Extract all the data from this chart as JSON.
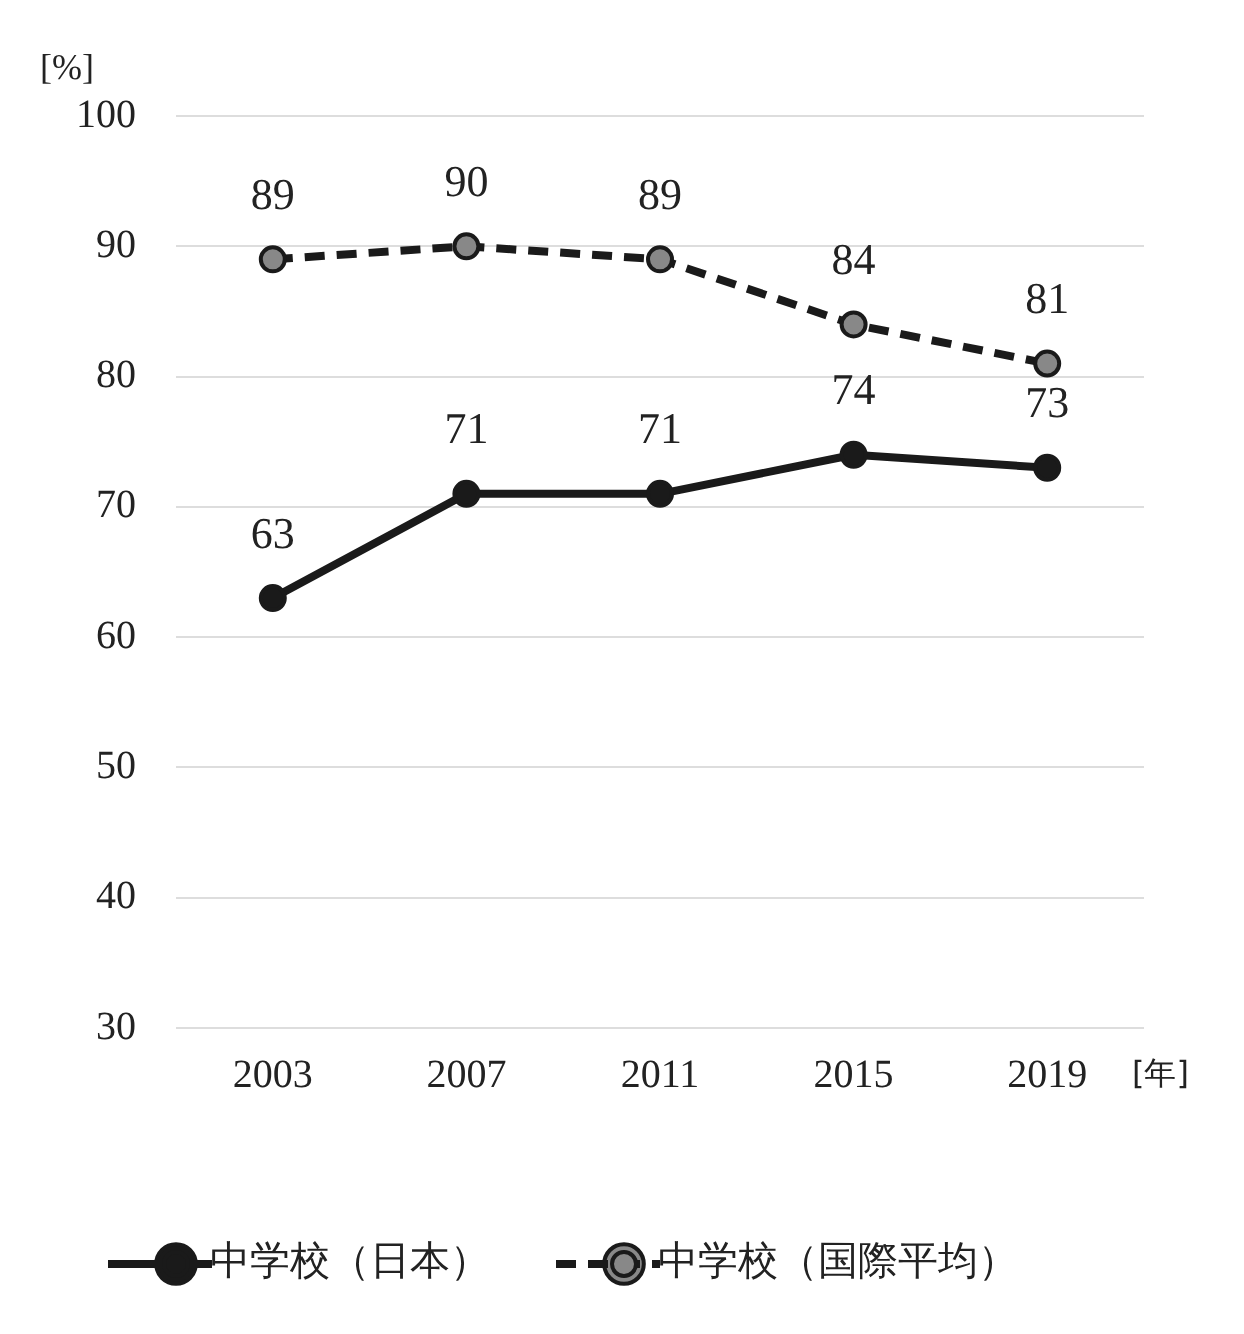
{
  "chart_data": {
    "type": "line",
    "ylabel": "[%]",
    "xlabel": "[年]",
    "categories": [
      "2003",
      "2007",
      "2011",
      "2015",
      "2019"
    ],
    "series": [
      {
        "name": "中学校（日本）",
        "color": "#1a1a1a",
        "values": [
          63,
          71,
          71,
          74,
          73
        ],
        "line_style": "solid"
      },
      {
        "name": "中学校（国際平均）",
        "color": "#1a1a1a",
        "values": [
          89,
          90,
          89,
          84,
          81
        ],
        "line_style": "dashed"
      }
    ],
    "ylim": [
      30,
      100
    ],
    "yticks": [
      30,
      40,
      50,
      60,
      70,
      80,
      90,
      100
    ],
    "grid": "y",
    "legend": "bottom",
    "marker": "circle",
    "data_labels": true
  }
}
